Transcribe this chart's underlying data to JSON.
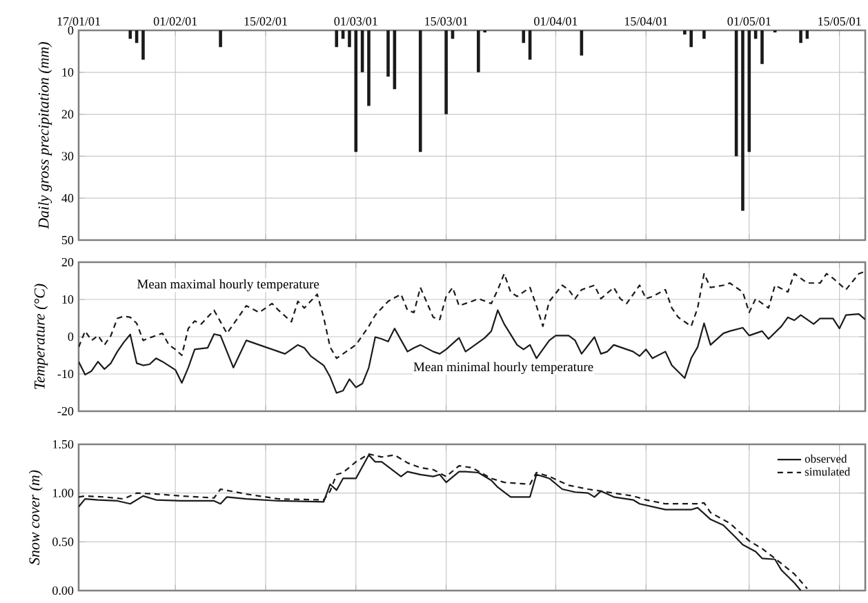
{
  "chart_data": [
    {
      "type": "bar",
      "ylabel": "Daily gross precipitation (mm)",
      "color": "#1a1a1a",
      "x": [
        "2001-01-25",
        "2001-01-26",
        "2001-01-27",
        "2001-02-08",
        "2001-02-26",
        "2001-02-27",
        "2001-02-28",
        "2001-03-01",
        "2001-03-02",
        "2001-03-03",
        "2001-03-06",
        "2001-03-07",
        "2001-03-11",
        "2001-03-15",
        "2001-03-16",
        "2001-03-20",
        "2001-03-21",
        "2001-03-27",
        "2001-03-28",
        "2001-04-05",
        "2001-04-21",
        "2001-04-22",
        "2001-04-24",
        "2001-04-29",
        "2001-04-30",
        "2001-05-01",
        "2001-05-02",
        "2001-05-03",
        "2001-05-05",
        "2001-05-09",
        "2001-05-10"
      ],
      "values": [
        2,
        3,
        7,
        4,
        4,
        2,
        4,
        29,
        10,
        18,
        11,
        14,
        29,
        20,
        2,
        10,
        0.5,
        3,
        7,
        6,
        1,
        4,
        2,
        30,
        43,
        29,
        2,
        8,
        0.5,
        3,
        2
      ],
      "xlim": [
        "2001-01-17",
        "2001-05-19"
      ],
      "xticks": [
        {
          "value": "2001-01-17",
          "label": "17/01/01"
        },
        {
          "value": "2001-02-01",
          "label": "01/02/01"
        },
        {
          "value": "2001-02-15",
          "label": "15/02/01"
        },
        {
          "value": "2001-03-01",
          "label": "01/03/01"
        },
        {
          "value": "2001-03-15",
          "label": "15/03/01"
        },
        {
          "value": "2001-04-01",
          "label": "01/04/01"
        },
        {
          "value": "2001-04-15",
          "label": "15/04/01"
        },
        {
          "value": "2001-05-01",
          "label": "01/05/01"
        },
        {
          "value": "2001-05-15",
          "label": "15/05/01"
        }
      ],
      "ylim": [
        50,
        0
      ],
      "yticks": [
        0,
        10,
        20,
        30,
        40,
        50
      ],
      "grid": true
    },
    {
      "type": "line",
      "ylabel": "Temperature (°C)",
      "xlim": [
        "2001-01-17",
        "2001-05-19"
      ],
      "xticks": [
        {
          "value": "2001-01-17",
          "label": null
        },
        {
          "value": "2001-02-01",
          "label": null
        },
        {
          "value": "2001-02-15",
          "label": null
        },
        {
          "value": "2001-03-01",
          "label": null
        },
        {
          "value": "2001-03-15",
          "label": null
        },
        {
          "value": "2001-04-01",
          "label": null
        },
        {
          "value": "2001-04-15",
          "label": null
        },
        {
          "value": "2001-05-01",
          "label": null
        },
        {
          "value": "2001-05-15",
          "label": null
        }
      ],
      "ylim": [
        -20,
        20
      ],
      "yticks": [
        -20,
        -10,
        0,
        10,
        20
      ],
      "grid": true,
      "tick_labels": "y",
      "annotations": [
        "Mean maximal hourly temperature",
        "Mean minimal hourly temperature"
      ],
      "series": [
        {
          "color": "#1a1a1a",
          "line_style": "dashed",
          "x": [
            "2001-01-17",
            "2001-01-18",
            "2001-01-19",
            "2001-01-20",
            "2001-01-21",
            "2001-01-22",
            "2001-01-23",
            "2001-01-24",
            "2001-01-25",
            "2001-01-26",
            "2001-01-27",
            "2001-01-28",
            "2001-01-30",
            "2001-01-31",
            "2001-02-01",
            "2001-02-02",
            "2001-02-03",
            "2001-02-04",
            "2001-02-05",
            "2001-02-07",
            "2001-02-08",
            "2001-02-09",
            "2001-02-11",
            "2001-02-12",
            "2001-02-14",
            "2001-02-16",
            "2001-02-17",
            "2001-02-19",
            "2001-02-20",
            "2001-02-21",
            "2001-02-23",
            "2001-02-24",
            "2001-02-25",
            "2001-02-26",
            "2001-02-27",
            "2001-02-28",
            "2001-03-01",
            "2001-03-03",
            "2001-03-04",
            "2001-03-06",
            "2001-03-08",
            "2001-03-09",
            "2001-03-10",
            "2001-03-11",
            "2001-03-13",
            "2001-03-14",
            "2001-03-15",
            "2001-03-16",
            "2001-03-17",
            "2001-03-19",
            "2001-03-20",
            "2001-03-22",
            "2001-03-23",
            "2001-03-24",
            "2001-03-25",
            "2001-03-26",
            "2001-03-28",
            "2001-03-29",
            "2001-03-30",
            "2001-03-31",
            "2001-04-02",
            "2001-04-03",
            "2001-04-04",
            "2001-04-05",
            "2001-04-07",
            "2001-04-08",
            "2001-04-10",
            "2001-04-11",
            "2001-04-12",
            "2001-04-14",
            "2001-04-15",
            "2001-04-16",
            "2001-04-18",
            "2001-04-19",
            "2001-04-20",
            "2001-04-22",
            "2001-04-23",
            "2001-04-24",
            "2001-04-25",
            "2001-04-27",
            "2001-04-28",
            "2001-04-30",
            "2001-05-01",
            "2001-05-02",
            "2001-05-04",
            "2001-05-05",
            "2001-05-07",
            "2001-05-08",
            "2001-05-10",
            "2001-05-12",
            "2001-05-13",
            "2001-05-14",
            "2001-05-16",
            "2001-05-18",
            "2001-05-19"
          ],
          "values": [
            -2.8,
            1.5,
            -1,
            0.3,
            -2.2,
            0.3,
            4.9,
            5.5,
            5.2,
            3.6,
            -1,
            -0.3,
            0.9,
            -2.2,
            -3.4,
            -5,
            2.2,
            4.2,
            3.4,
            7.1,
            4,
            0.9,
            5.8,
            8.3,
            6.5,
            8.9,
            7.1,
            4,
            9.5,
            7.7,
            11.4,
            5.2,
            -2.8,
            -5.8,
            -4.6,
            -3.4,
            -2.2,
            2.8,
            5.8,
            9.5,
            11.4,
            7.1,
            6.5,
            13.2,
            5.2,
            4.6,
            10.8,
            13.2,
            8.3,
            9.5,
            10.2,
            8.9,
            12.6,
            16.9,
            12,
            10.8,
            13.2,
            8.3,
            2.8,
            9.5,
            13.8,
            12.6,
            10.2,
            12.6,
            13.8,
            10.2,
            13.2,
            10.2,
            8.9,
            13.8,
            10.2,
            10.8,
            12.6,
            7.7,
            5.2,
            2.8,
            7.7,
            16.9,
            13.2,
            13.8,
            14.4,
            12,
            6.5,
            10.2,
            7.7,
            13.8,
            12,
            16.9,
            14.4,
            14.4,
            16.9,
            15.7,
            12.6,
            16.9,
            17.5
          ]
        },
        {
          "color": "#1a1a1a",
          "line_style": "solid",
          "x": [
            "2001-01-17",
            "2001-01-18",
            "2001-01-19",
            "2001-01-20",
            "2001-01-21",
            "2001-01-22",
            "2001-01-23",
            "2001-01-24",
            "2001-01-25",
            "2001-01-26",
            "2001-01-27",
            "2001-01-28",
            "2001-01-29",
            "2001-01-30",
            "2001-02-01",
            "2001-02-02",
            "2001-02-03",
            "2001-02-04",
            "2001-02-06",
            "2001-02-07",
            "2001-02-08",
            "2001-02-09",
            "2001-02-10",
            "2001-02-12",
            "2001-02-14",
            "2001-02-15",
            "2001-02-17",
            "2001-02-18",
            "2001-02-20",
            "2001-02-21",
            "2001-02-22",
            "2001-02-24",
            "2001-02-25",
            "2001-02-26",
            "2001-02-27",
            "2001-02-28",
            "2001-03-01",
            "2001-03-02",
            "2001-03-03",
            "2001-03-04",
            "2001-03-05",
            "2001-03-06",
            "2001-03-07",
            "2001-03-09",
            "2001-03-10",
            "2001-03-11",
            "2001-03-13",
            "2001-03-14",
            "2001-03-15",
            "2001-03-17",
            "2001-03-18",
            "2001-03-19",
            "2001-03-21",
            "2001-03-22",
            "2001-03-23",
            "2001-03-24",
            "2001-03-26",
            "2001-03-27",
            "2001-03-28",
            "2001-03-29",
            "2001-03-31",
            "2001-04-01",
            "2001-04-03",
            "2001-04-04",
            "2001-04-05",
            "2001-04-07",
            "2001-04-08",
            "2001-04-09",
            "2001-04-10",
            "2001-04-12",
            "2001-04-13",
            "2001-04-14",
            "2001-04-15",
            "2001-04-16",
            "2001-04-18",
            "2001-04-19",
            "2001-04-21",
            "2001-04-22",
            "2001-04-23",
            "2001-04-24",
            "2001-04-25",
            "2001-04-27",
            "2001-04-28",
            "2001-04-30",
            "2001-05-01",
            "2001-05-03",
            "2001-05-04",
            "2001-05-06",
            "2001-05-07",
            "2001-05-08",
            "2001-05-09",
            "2001-05-11",
            "2001-05-12",
            "2001-05-14",
            "2001-05-15",
            "2001-05-16",
            "2001-05-18",
            "2001-05-19"
          ],
          "values": [
            -6.7,
            -10.2,
            -9.2,
            -6.7,
            -8.7,
            -7.1,
            -4,
            -1.5,
            0.6,
            -7.1,
            -7.7,
            -7.4,
            -5.8,
            -6.7,
            -8.9,
            -12.4,
            -8.3,
            -3.4,
            -3,
            0.7,
            0.3,
            -4,
            -8.3,
            -1,
            -2.2,
            -2.8,
            -4,
            -4.6,
            -2.2,
            -3,
            -5.2,
            -7.7,
            -10.8,
            -15.1,
            -14.5,
            -11.4,
            -13.6,
            -12.6,
            -8.3,
            -0.1,
            -0.6,
            -1.3,
            2.2,
            -4,
            -3,
            -2.2,
            -4,
            -4.6,
            -3.4,
            -0.3,
            -4,
            -2.8,
            -0.3,
            1.5,
            7.1,
            3.4,
            -2.2,
            -3.4,
            -2.2,
            -5.8,
            -1,
            0.3,
            0.3,
            -1,
            -4.6,
            -0.1,
            -4.6,
            -4,
            -2.2,
            -3.4,
            -4,
            -5.2,
            -3.4,
            -5.8,
            -4,
            -7.7,
            -11.1,
            -5.8,
            -2.8,
            3.6,
            -2.2,
            0.9,
            1.5,
            2.4,
            0.3,
            1.5,
            -0.6,
            2.8,
            5.2,
            4.4,
            5.8,
            3.4,
            4.9,
            4.9,
            2.2,
            5.8,
            6.1,
            4.6
          ]
        }
      ]
    },
    {
      "type": "line",
      "ylabel": "Snow cover (m)",
      "legend": "top right",
      "xlim": [
        "2001-01-17",
        "2001-05-19"
      ],
      "xticks": [
        {
          "value": "2001-01-17",
          "label": null
        },
        {
          "value": "2001-02-01",
          "label": null
        },
        {
          "value": "2001-02-15",
          "label": null
        },
        {
          "value": "2001-03-01",
          "label": null
        },
        {
          "value": "2001-03-15",
          "label": null
        },
        {
          "value": "2001-04-01",
          "label": null
        },
        {
          "value": "2001-04-15",
          "label": null
        },
        {
          "value": "2001-05-01",
          "label": null
        },
        {
          "value": "2001-05-15",
          "label": null
        }
      ],
      "ylim": [
        0,
        1.5
      ],
      "yticks": [
        {
          "value": 0,
          "label": "0.00"
        },
        {
          "value": 0.5,
          "label": "0.50"
        },
        {
          "value": 1,
          "label": "1.00"
        },
        {
          "value": 1.5,
          "label": "1.50"
        }
      ],
      "grid": true,
      "tick_labels": "y",
      "series": [
        {
          "name": "observed",
          "color": "#1a1a1a",
          "line_style": "solid",
          "x": [
            "2001-01-17",
            "2001-01-18",
            "2001-01-20",
            "2001-01-23",
            "2001-01-25",
            "2001-01-27",
            "2001-01-29",
            "2001-02-02",
            "2001-02-07",
            "2001-02-08",
            "2001-02-09",
            "2001-02-12",
            "2001-02-17",
            "2001-02-24",
            "2001-02-25",
            "2001-02-26",
            "2001-02-27",
            "2001-03-01",
            "2001-03-03",
            "2001-03-04",
            "2001-03-05",
            "2001-03-08",
            "2001-03-09",
            "2001-03-11",
            "2001-03-13",
            "2001-03-14",
            "2001-03-15",
            "2001-03-17",
            "2001-03-18",
            "2001-03-20",
            "2001-03-22",
            "2001-03-23",
            "2001-03-25",
            "2001-03-28",
            "2001-03-29",
            "2001-03-31",
            "2001-04-02",
            "2001-04-04",
            "2001-04-06",
            "2001-04-07",
            "2001-04-08",
            "2001-04-10",
            "2001-04-13",
            "2001-04-14",
            "2001-04-18",
            "2001-04-22",
            "2001-04-23",
            "2001-04-25",
            "2001-04-27",
            "2001-04-29",
            "2001-04-30",
            "2001-05-02",
            "2001-05-03",
            "2001-05-05",
            "2001-05-06",
            "2001-05-08",
            "2001-05-09"
          ],
          "values": [
            0.86,
            0.94,
            0.93,
            0.92,
            0.89,
            0.97,
            0.93,
            0.92,
            0.92,
            0.89,
            0.96,
            0.94,
            0.92,
            0.91,
            1.09,
            1.03,
            1.15,
            1.15,
            1.39,
            1.32,
            1.32,
            1.17,
            1.22,
            1.19,
            1.17,
            1.19,
            1.11,
            1.22,
            1.22,
            1.21,
            1.13,
            1.06,
            0.96,
            0.96,
            1.19,
            1.15,
            1.04,
            1.01,
            1.0,
            0.96,
            1.02,
            0.96,
            0.93,
            0.89,
            0.83,
            0.83,
            0.85,
            0.73,
            0.67,
            0.54,
            0.47,
            0.4,
            0.33,
            0.32,
            0.21,
            0.08,
            0.0
          ]
        },
        {
          "name": "simulated",
          "color": "#1a1a1a",
          "line_style": "dashed",
          "x": [
            "2001-01-17",
            "2001-01-18",
            "2001-01-21",
            "2001-01-24",
            "2001-01-26",
            "2001-01-29",
            "2001-02-02",
            "2001-02-07",
            "2001-02-08",
            "2001-02-12",
            "2001-02-17",
            "2001-02-24",
            "2001-02-25",
            "2001-02-26",
            "2001-02-27",
            "2001-03-01",
            "2001-03-03",
            "2001-03-05",
            "2001-03-07",
            "2001-03-09",
            "2001-03-11",
            "2001-03-13",
            "2001-03-15",
            "2001-03-17",
            "2001-03-19",
            "2001-03-22",
            "2001-03-24",
            "2001-03-28",
            "2001-03-29",
            "2001-03-31",
            "2001-04-03",
            "2001-04-06",
            "2001-04-10",
            "2001-04-13",
            "2001-04-15",
            "2001-04-18",
            "2001-04-23",
            "2001-04-24",
            "2001-04-25",
            "2001-04-28",
            "2001-05-01",
            "2001-05-03",
            "2001-05-05",
            "2001-05-08",
            "2001-05-10"
          ],
          "values": [
            0.96,
            0.97,
            0.96,
            0.94,
            1.0,
            0.99,
            0.97,
            0.95,
            1.04,
            0.99,
            0.94,
            0.93,
            1.02,
            1.19,
            1.21,
            1.32,
            1.4,
            1.37,
            1.39,
            1.31,
            1.26,
            1.24,
            1.17,
            1.28,
            1.26,
            1.15,
            1.11,
            1.09,
            1.21,
            1.17,
            1.08,
            1.04,
            1.0,
            0.97,
            0.93,
            0.89,
            0.89,
            0.9,
            0.8,
            0.69,
            0.51,
            0.43,
            0.33,
            0.17,
            0.02
          ]
        }
      ]
    }
  ]
}
